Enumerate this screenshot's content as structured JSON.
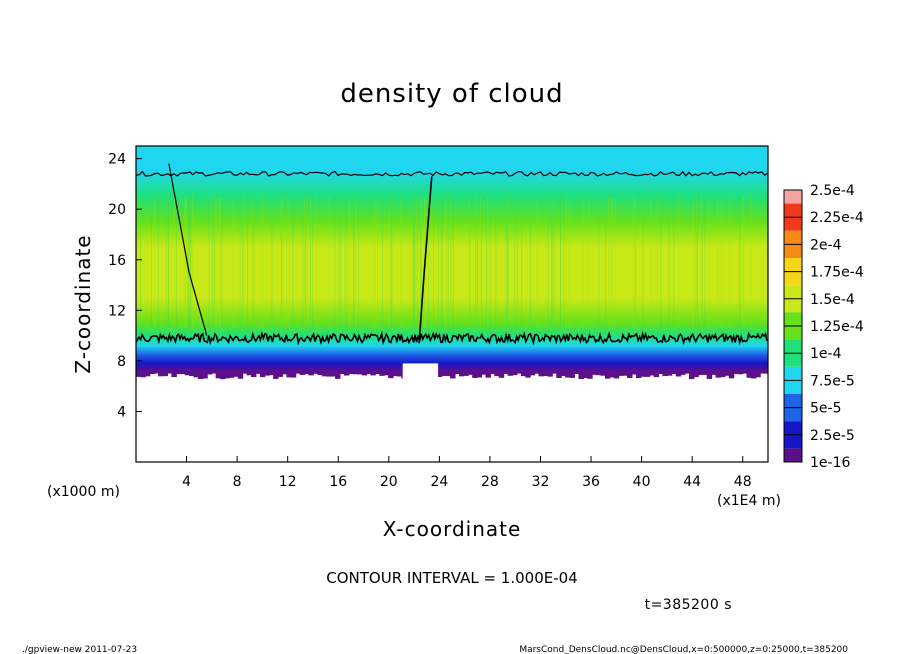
{
  "chart_data": {
    "type": "heatmap",
    "title": "density of cloud",
    "xlabel": "X-coordinate",
    "ylabel": "Z-coordinate",
    "x_unit_label": "(x1E4 m)",
    "y_unit_label": "(x1000 m)",
    "xlim": [
      0,
      50
    ],
    "ylim": [
      0,
      25
    ],
    "x_ticks": [
      "4",
      "8",
      "12",
      "16",
      "20",
      "24",
      "28",
      "32",
      "36",
      "40",
      "44",
      "48"
    ],
    "y_ticks": [
      "4",
      "8",
      "12",
      "16",
      "20",
      "24"
    ],
    "colorbar": {
      "labels": [
        "1e-16",
        "2.5e-5",
        "5e-5",
        "7.5e-5",
        "1e-4",
        "1.25e-4",
        "1.5e-4",
        "1.75e-4",
        "2e-4",
        "2.25e-4",
        "2.5e-4"
      ],
      "colors": [
        "#5b0f8a",
        "#1616c8",
        "#1f63e6",
        "#1fd6ee",
        "#1fe07a",
        "#66e01a",
        "#c8e817",
        "#f5d61a",
        "#f58b12",
        "#f23a1a",
        "#f5a3a3"
      ]
    },
    "cloud_layer": {
      "bottom_z": 7.2,
      "contour_lower_z": 9.8,
      "contour_upper_z": 22.8,
      "gap_x": 22.5,
      "gap_bottom_z": 7.8
    },
    "vertical_profile": [
      {
        "z": 7.2,
        "value": 3e-07
      },
      {
        "z": 7.8,
        "value": 2e-05
      },
      {
        "z": 8.5,
        "value": 4e-05
      },
      {
        "z": 9.2,
        "value": 6.5e-05
      },
      {
        "z": 10.0,
        "value": 0.0001
      },
      {
        "z": 11.0,
        "value": 0.000125
      },
      {
        "z": 13.0,
        "value": 0.00014
      },
      {
        "z": 15.0,
        "value": 0.000145
      },
      {
        "z": 17.0,
        "value": 0.000143
      },
      {
        "z": 19.0,
        "value": 0.00013
      },
      {
        "z": 21.0,
        "value": 0.00011
      },
      {
        "z": 23.0,
        "value": 8.5e-05
      },
      {
        "z": 25.0,
        "value": 8e-05
      }
    ],
    "contour_interval_text": "CONTOUR INTERVAL = 1.000E-04",
    "time_text": "t=385200 s"
  },
  "footer": {
    "left": "./gpview-new  2011-07-23",
    "right": "MarsCond_DensCloud.nc@DensCloud,x=0:500000,z=0:25000,t=385200"
  }
}
